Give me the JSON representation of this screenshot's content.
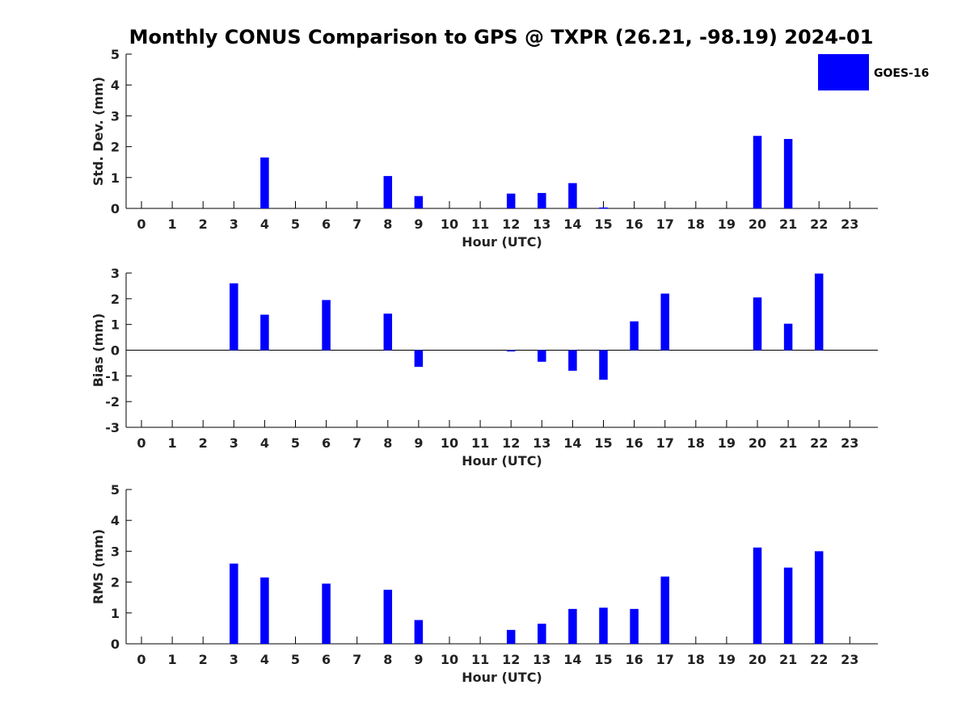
{
  "figure_title": "Monthly CONUS Comparison to GPS @ TXPR (26.21, -98.19) 2024-01",
  "legend": {
    "label": "GOES-16",
    "color": "#0000ff"
  },
  "chart_data": [
    {
      "type": "bar",
      "title": "Monthly CONUS Comparison to GPS @ TXPR (26.21, -98.19) 2024-01",
      "xlabel": "Hour (UTC)",
      "ylabel": "Std. Dev. (mm)",
      "ylim": [
        0,
        5
      ],
      "yticks": [
        0,
        1,
        2,
        3,
        4,
        5
      ],
      "categories": [
        "0",
        "1",
        "2",
        "3",
        "4",
        "5",
        "6",
        "7",
        "8",
        "9",
        "10",
        "11",
        "12",
        "13",
        "14",
        "15",
        "16",
        "17",
        "18",
        "19",
        "20",
        "21",
        "22",
        "23"
      ],
      "series": [
        {
          "name": "GOES-16",
          "color": "#0000ff",
          "values": [
            null,
            null,
            null,
            null,
            1.65,
            null,
            null,
            null,
            1.05,
            0.4,
            null,
            null,
            0.48,
            0.5,
            0.82,
            0.03,
            null,
            null,
            null,
            null,
            2.35,
            2.25,
            null,
            null
          ]
        }
      ]
    },
    {
      "type": "bar",
      "xlabel": "Hour (UTC)",
      "ylabel": "Bias (mm)",
      "ylim": [
        -3,
        3
      ],
      "yticks": [
        -3,
        -2,
        -1,
        0,
        1,
        2,
        3
      ],
      "categories": [
        "0",
        "1",
        "2",
        "3",
        "4",
        "5",
        "6",
        "7",
        "8",
        "9",
        "10",
        "11",
        "12",
        "13",
        "14",
        "15",
        "16",
        "17",
        "18",
        "19",
        "20",
        "21",
        "22",
        "23"
      ],
      "series": [
        {
          "name": "GOES-16",
          "color": "#0000ff",
          "values": [
            null,
            null,
            null,
            2.6,
            1.38,
            null,
            1.95,
            null,
            1.42,
            -0.65,
            null,
            null,
            -0.05,
            -0.45,
            -0.8,
            -1.15,
            1.12,
            2.2,
            null,
            null,
            2.05,
            1.03,
            2.98,
            null
          ]
        }
      ]
    },
    {
      "type": "bar",
      "xlabel": "Hour (UTC)",
      "ylabel": "RMS (mm)",
      "ylim": [
        0,
        5
      ],
      "yticks": [
        0,
        1,
        2,
        3,
        4,
        5
      ],
      "categories": [
        "0",
        "1",
        "2",
        "3",
        "4",
        "5",
        "6",
        "7",
        "8",
        "9",
        "10",
        "11",
        "12",
        "13",
        "14",
        "15",
        "16",
        "17",
        "18",
        "19",
        "20",
        "21",
        "22",
        "23"
      ],
      "series": [
        {
          "name": "GOES-16",
          "color": "#0000ff",
          "values": [
            null,
            null,
            null,
            2.6,
            2.15,
            null,
            1.95,
            null,
            1.75,
            0.77,
            null,
            null,
            0.45,
            0.65,
            1.13,
            1.17,
            1.13,
            2.18,
            null,
            null,
            3.12,
            2.47,
            3.0,
            null
          ]
        }
      ]
    }
  ]
}
